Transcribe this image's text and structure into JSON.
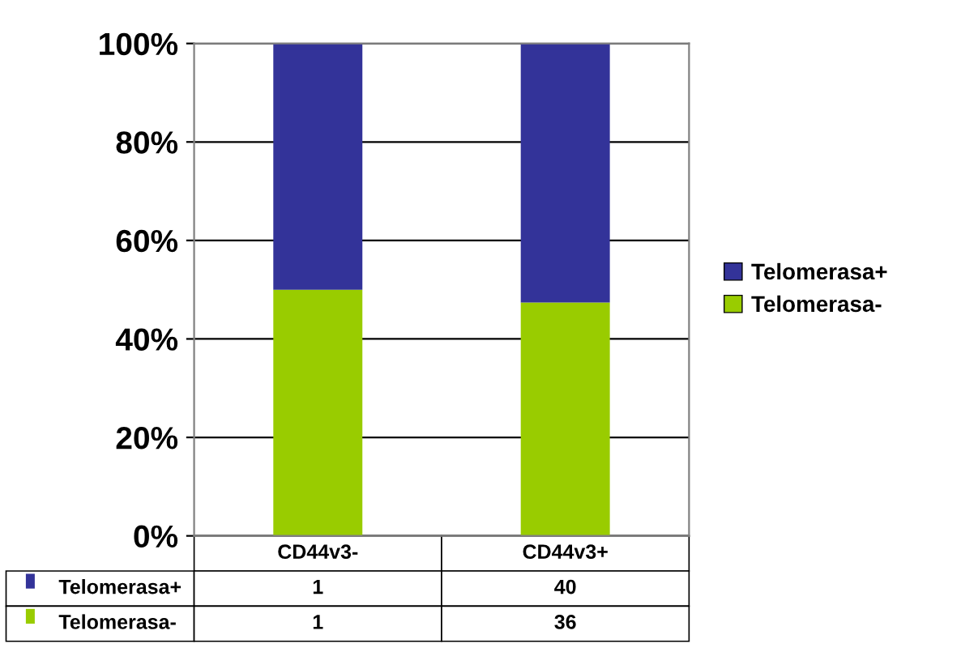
{
  "chart_data": {
    "type": "bar",
    "stacked": true,
    "categories": [
      "CD44v3-",
      "CD44v3+"
    ],
    "series": [
      {
        "name": "Telomerasa-",
        "color": "#99cc00",
        "values": [
          50,
          47.4
        ]
      },
      {
        "name": "Telomerasa+",
        "color": "#333399",
        "values": [
          50,
          52.6
        ]
      }
    ],
    "annotations": [
      "1",
      "40",
      "1",
      "36"
    ],
    "ylim": [
      0,
      100
    ],
    "yticks": [
      {
        "value": 0,
        "label": "0%"
      },
      {
        "value": 20,
        "label": "20%"
      },
      {
        "value": 40,
        "label": "40%"
      },
      {
        "value": 60,
        "label": "60%"
      },
      {
        "value": 80,
        "label": "80%"
      },
      {
        "value": 100,
        "label": "100%"
      }
    ],
    "grid": "y",
    "legend": "right"
  }
}
